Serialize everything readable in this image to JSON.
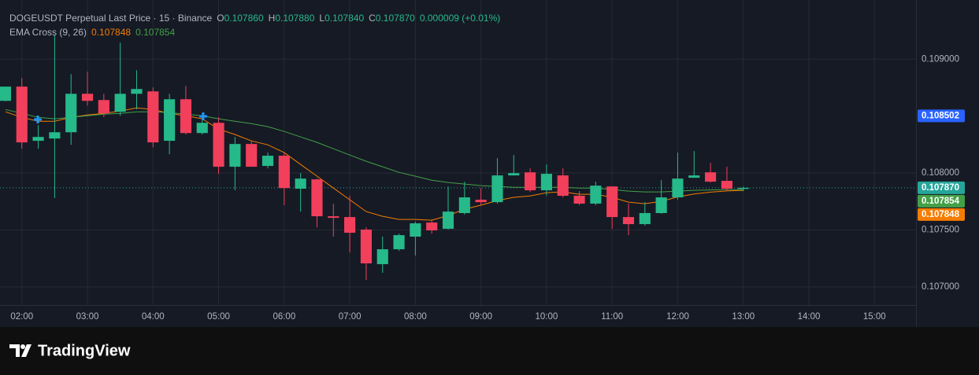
{
  "chart_data": {
    "type": "candlestick",
    "title": "DOGEUSDT Perpetual Last Price · 15 · Binance",
    "ohlc_keys": [
      "O",
      "H",
      "L",
      "C"
    ],
    "last_value_labels": {
      "open": "0.107860",
      "high": "0.107880",
      "low": "0.107840",
      "close": "0.107870"
    },
    "change_label": "0.000009 (+0.01%)",
    "up_color": "#26b98a",
    "down_color": "#f23f5b",
    "x": [
      "01:45",
      "02:00",
      "02:15",
      "02:30",
      "02:45",
      "03:00",
      "03:15",
      "03:30",
      "03:45",
      "04:00",
      "04:15",
      "04:30",
      "04:45",
      "05:00",
      "05:15",
      "05:30",
      "05:45",
      "06:00",
      "06:15",
      "06:30",
      "06:45",
      "07:00",
      "07:15",
      "07:30",
      "07:45",
      "08:00",
      "08:15",
      "08:30",
      "08:45",
      "09:00",
      "09:15",
      "09:30",
      "09:45",
      "10:00",
      "10:15",
      "10:30",
      "10:45",
      "11:00",
      "11:15",
      "11:30",
      "11:45",
      "12:00",
      "12:15",
      "12:30",
      "12:45",
      "13:00"
    ],
    "open": [
      0.108634,
      0.108759,
      0.108283,
      0.108303,
      0.108358,
      0.108696,
      0.108641,
      0.108538,
      0.108696,
      0.108717,
      0.108283,
      0.108648,
      0.108351,
      0.108441,
      0.108055,
      0.108255,
      0.108062,
      0.108152,
      0.107862,
      0.107944,
      0.10762,
      0.107613,
      0.107503,
      0.107199,
      0.10733,
      0.107441,
      0.107565,
      0.10751,
      0.107648,
      0.107765,
      0.107744,
      0.107979,
      0.108006,
      0.107848,
      0.107979,
      0.1078,
      0.107731,
      0.107882,
      0.107613,
      0.107551,
      0.107648,
      0.107786,
      0.107958,
      0.108006,
      0.107931,
      0.10786
    ],
    "high": [
      0.10876,
      0.108834,
      0.108421,
      0.109214,
      0.108869,
      0.10889,
      0.108696,
      0.109145,
      0.108903,
      0.108752,
      0.108696,
      0.108765,
      0.108524,
      0.10849,
      0.108317,
      0.10828,
      0.10818,
      0.10818,
      0.108,
      0.107951,
      0.10773,
      0.107799,
      0.107523,
      0.107441,
      0.107468,
      0.107572,
      0.107592,
      0.107882,
      0.107924,
      0.107868,
      0.108131,
      0.108158,
      0.108041,
      0.108075,
      0.108041,
      0.107841,
      0.107924,
      0.107882,
      0.10773,
      0.107744,
      0.107937,
      0.108179,
      0.108193,
      0.10809,
      0.108055,
      0.10788
    ],
    "low": [
      0.10863,
      0.108214,
      0.108214,
      0.107779,
      0.108248,
      0.108593,
      0.10849,
      0.108503,
      0.108559,
      0.108227,
      0.108165,
      0.108338,
      0.108338,
      0.107993,
      0.107848,
      0.108055,
      0.108041,
      0.107717,
      0.107661,
      0.107523,
      0.107441,
      0.107303,
      0.107061,
      0.107123,
      0.107316,
      0.107275,
      0.107468,
      0.107503,
      0.107634,
      0.107717,
      0.10773,
      0.107979,
      0.107834,
      0.1078,
      0.107786,
      0.107717,
      0.107717,
      0.10751,
      0.107454,
      0.107537,
      0.107641,
      0.107765,
      0.107958,
      0.107917,
      0.107848,
      0.10784
    ],
    "close": [
      0.108759,
      0.108269,
      0.108317,
      0.108358,
      0.108696,
      0.108634,
      0.108524,
      0.108696,
      0.108738,
      0.108269,
      0.108648,
      0.108351,
      0.108441,
      0.108055,
      0.108255,
      0.108055,
      0.108152,
      0.107868,
      0.107951,
      0.10762,
      0.107606,
      0.107475,
      0.107206,
      0.10733,
      0.107454,
      0.107558,
      0.107496,
      0.107661,
      0.107786,
      0.107744,
      0.107979,
      0.107999,
      0.107848,
      0.107993,
      0.1078,
      0.107731,
      0.107889,
      0.107613,
      0.107551,
      0.107648,
      0.107786,
      0.107951,
      0.107979,
      0.107924,
      0.107862,
      0.10787
    ],
    "indicator": "EMA Cross (9, 26)",
    "series": [
      {
        "color": "#f57c00",
        "values": [
          0.108538,
          0.108489,
          0.108455,
          0.108455,
          0.108489,
          0.10851,
          0.108524,
          0.108545,
          0.108572,
          0.108558,
          0.108524,
          0.108503,
          0.108476,
          0.108386,
          0.108338,
          0.108282,
          0.108248,
          0.108179,
          0.108075,
          0.107972,
          0.107868,
          0.107765,
          0.107661,
          0.10762,
          0.107592,
          0.107592,
          0.107585,
          0.107627,
          0.107682,
          0.107717,
          0.107758,
          0.107786,
          0.107799,
          0.107827,
          0.107834,
          0.107813,
          0.107813,
          0.107786,
          0.107744,
          0.10773,
          0.107751,
          0.10779,
          0.107815,
          0.107832,
          0.107842,
          0.107848
        ]
      },
      {
        "color": "#43a047",
        "values": [
          0.108558,
          0.108524,
          0.108489,
          0.108476,
          0.108489,
          0.108503,
          0.108517,
          0.108524,
          0.108538,
          0.108538,
          0.108531,
          0.108517,
          0.108503,
          0.108476,
          0.108455,
          0.108434,
          0.108407,
          0.108365,
          0.108317,
          0.108269,
          0.108213,
          0.108158,
          0.108103,
          0.108055,
          0.108006,
          0.107972,
          0.107937,
          0.107917,
          0.107903,
          0.107889,
          0.107882,
          0.107875,
          0.107875,
          0.107875,
          0.107875,
          0.107868,
          0.107868,
          0.107855,
          0.107841,
          0.107834,
          0.107834,
          0.107841,
          0.107848,
          0.107851,
          0.107853,
          0.107854
        ]
      }
    ],
    "crosshair_price": 0.108502,
    "crosshair_color": "#2962ff",
    "last_price_color": "#26a69a",
    "ylim": [
      0.10684,
      0.10952
    ],
    "yticks": [
      {
        "value": 0.107,
        "label": "0.107000"
      },
      {
        "value": 0.1075,
        "label": "0.107500"
      },
      {
        "value": 0.108,
        "label": "0.108000"
      },
      {
        "value": 0.109,
        "label": "0.109000"
      }
    ],
    "xlim": [
      "01:40",
      "15:38"
    ],
    "xticks": [
      "02:00",
      "03:00",
      "04:00",
      "05:00",
      "06:00",
      "07:00",
      "08:00",
      "09:00",
      "10:00",
      "11:00",
      "12:00",
      "13:00",
      "14:00",
      "15:00"
    ],
    "grid": true
  },
  "footer": {
    "brand": "TradingView"
  }
}
